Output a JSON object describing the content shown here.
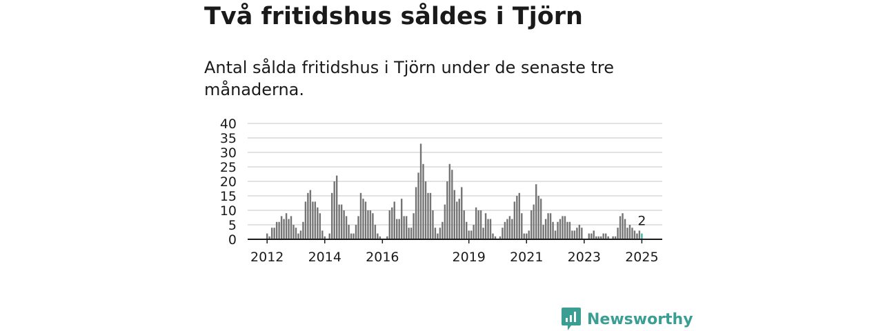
{
  "headline": "Två fritidshus såldes i Tjörn",
  "subtitle": "Antal sålda fritidshus i Tjörn under de senaste tre månaderna.",
  "brand": {
    "name": "Newsworthy",
    "color": "#3a9e92"
  },
  "chart_data": {
    "type": "bar",
    "title": "",
    "xlabel": "",
    "ylabel": "",
    "ylim": [
      0,
      40
    ],
    "yticks": [
      0,
      5,
      10,
      15,
      20,
      25,
      30,
      35,
      40
    ],
    "xtick_labels": [
      "2012",
      "2014",
      "2016",
      "2019",
      "2021",
      "2023",
      "2025"
    ],
    "grid": true,
    "legend": "none",
    "colors": {
      "bar": "#747474",
      "highlight": "#3fb5a4",
      "grid": "#d8d8d8",
      "axis": "#1a1a1a"
    },
    "start_period": "2012-01",
    "highlight_label": "2",
    "series": [
      {
        "values": [
          2,
          1,
          4,
          4,
          6,
          6,
          8,
          7,
          9,
          7,
          8,
          5,
          4,
          2,
          3,
          6,
          13,
          16,
          17,
          13,
          13,
          11,
          9,
          3,
          1,
          0,
          2,
          16,
          20,
          22,
          12,
          12,
          10,
          8,
          5,
          2,
          2,
          5,
          8,
          16,
          14,
          13,
          10,
          10,
          9,
          5,
          2,
          1,
          0,
          0,
          1,
          10,
          11,
          13,
          7,
          7,
          14,
          8,
          8,
          4,
          4,
          9,
          18,
          23,
          33,
          26,
          20,
          16,
          16,
          10,
          4,
          2,
          4,
          6,
          12,
          20,
          26,
          24,
          17,
          13,
          14,
          18,
          10,
          6,
          3,
          3,
          5,
          11,
          10,
          10,
          4,
          9,
          7,
          7,
          2,
          1,
          0,
          1,
          4,
          6,
          7,
          8,
          7,
          13,
          15,
          16,
          9,
          2,
          2,
          3,
          10,
          12,
          19,
          15,
          14,
          5,
          7,
          9,
          9,
          6,
          3,
          6,
          7,
          8,
          8,
          6,
          6,
          3,
          3,
          4,
          5,
          4,
          0,
          0,
          2,
          2,
          3,
          1,
          1,
          1,
          2,
          2,
          1,
          0,
          1,
          1,
          4,
          8,
          9,
          7,
          4,
          5,
          4,
          3,
          2,
          3,
          2
        ]
      }
    ]
  }
}
